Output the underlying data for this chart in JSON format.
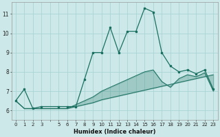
{
  "xlabel": "Humidex (Indice chaleur)",
  "background_color": "#cce8e8",
  "grid_color": "#aad4d4",
  "line_color": "#1a7060",
  "xlim": [
    -0.5,
    23.5
  ],
  "ylim": [
    5.5,
    11.6
  ],
  "y_ticks": [
    6,
    7,
    8,
    9,
    10,
    11
  ],
  "series1_x": [
    0,
    1,
    2,
    3,
    5,
    6,
    7,
    8,
    9,
    10,
    11,
    12,
    13,
    14,
    15,
    16,
    17,
    18,
    19,
    20,
    21,
    22,
    23
  ],
  "series1_y": [
    6.5,
    7.1,
    6.1,
    6.2,
    6.2,
    6.2,
    6.2,
    7.6,
    9.0,
    9.0,
    10.3,
    9.0,
    10.1,
    10.1,
    11.3,
    11.1,
    9.0,
    8.3,
    8.0,
    8.1,
    7.9,
    8.1,
    7.1
  ],
  "series2_x": [
    0,
    1,
    2,
    3,
    5,
    6,
    7,
    8,
    9,
    10,
    11,
    12,
    13,
    14,
    15,
    16,
    17,
    18,
    19,
    20,
    21,
    22,
    23
  ],
  "series2_y": [
    6.5,
    6.1,
    6.1,
    6.1,
    6.1,
    6.1,
    6.2,
    6.3,
    6.4,
    6.55,
    6.65,
    6.75,
    6.85,
    6.95,
    7.05,
    7.15,
    7.25,
    7.35,
    7.45,
    7.55,
    7.65,
    7.75,
    7.85
  ],
  "series3_x": [
    0,
    1,
    2,
    3,
    5,
    6,
    7,
    8,
    9,
    10,
    11,
    12,
    13,
    14,
    15,
    16,
    17,
    18,
    19,
    20,
    21,
    22,
    23
  ],
  "series3_y": [
    6.5,
    6.1,
    6.1,
    6.1,
    6.1,
    6.1,
    6.3,
    6.5,
    6.7,
    7.0,
    7.2,
    7.4,
    7.6,
    7.8,
    8.0,
    8.1,
    7.5,
    7.2,
    7.65,
    7.85,
    7.75,
    7.95,
    7.0
  ]
}
